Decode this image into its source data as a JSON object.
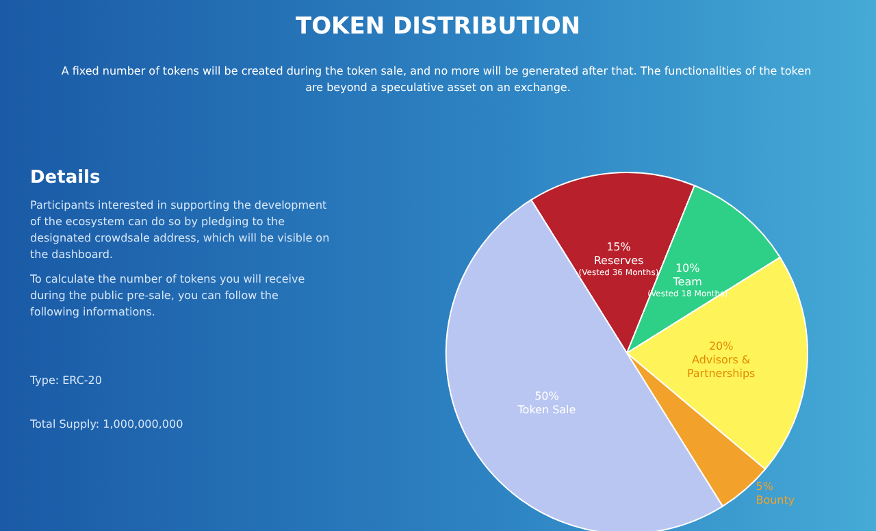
{
  "chart_data": {
    "type": "pie",
    "title": "TOKEN DISTRIBUTION",
    "subtitle": "A fixed number of tokens will be created during the token sale, and no more will be generated after that. The functionalities of the token are beyond a speculative asset on an exchange.",
    "categories": [
      "Reserves\n(Vested 36 Months)",
      "Team\n(Vested 18 Months)",
      "Advisors &\nPartnerships",
      "Bounty",
      "Token Sale"
    ],
    "values": [
      15,
      10,
      20,
      5,
      50
    ],
    "colors": [
      "#b8202c",
      "#2ecf86",
      "#fff35a",
      "#f2a22a",
      "#b9c6f2"
    ],
    "value_labels": [
      "15%",
      "10%",
      "20%",
      "5%",
      "50%"
    ],
    "annotations": [
      "Details",
      "Participants interested in supporting the development of the ecosystem can do so by pledging to the designated crowdsale address, which will be visible on the dashboard.",
      "To calculate the number of tokens you will receive during the public pre-sale, you can follow the following informations.",
      "Type: ERC-20",
      "Total Supply: 1,000,000,000"
    ]
  }
}
